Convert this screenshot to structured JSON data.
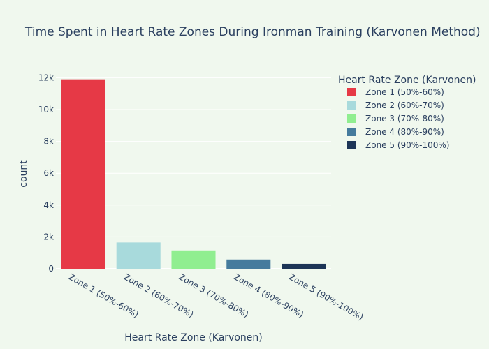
{
  "chart_data": {
    "type": "bar",
    "title": "Time Spent in Heart Rate Zones During Ironman Training (Karvonen Method)",
    "xlabel": "Heart Rate Zone (Karvonen)",
    "ylabel": "count",
    "ylim": [
      0,
      12500
    ],
    "yticks": [
      {
        "value": 0,
        "label": "0"
      },
      {
        "value": 2000,
        "label": "2k"
      },
      {
        "value": 4000,
        "label": "4k"
      },
      {
        "value": 6000,
        "label": "6k"
      },
      {
        "value": 8000,
        "label": "8k"
      },
      {
        "value": 10000,
        "label": "10k"
      },
      {
        "value": 12000,
        "label": "12k"
      }
    ],
    "grid": true,
    "legend_title": "Heart Rate Zone (Karvonen)",
    "legend_position": "right",
    "categories": [
      "Zone 1 (50%-60%)",
      "Zone 2 (60%-70%)",
      "Zone 3 (70%-80%)",
      "Zone 4 (80%-90%)",
      "Zone 5 (90%-100%)"
    ],
    "values": [
      11900,
      1650,
      1150,
      580,
      310
    ],
    "colors": [
      "#E63946",
      "#A8DADC",
      "#90EE90",
      "#457B9D",
      "#1D3557"
    ],
    "background": "#F0F8EE",
    "gridcolor": "#FFFFFF"
  }
}
